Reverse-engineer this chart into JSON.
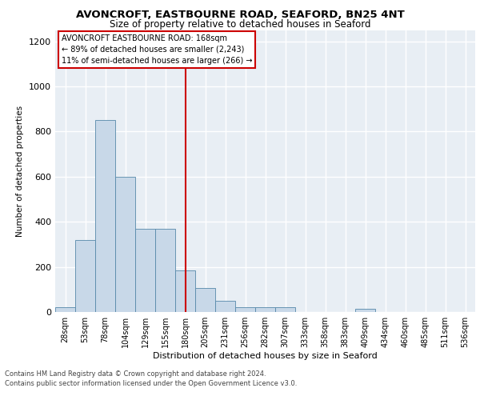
{
  "title1": "AVONCROFT, EASTBOURNE ROAD, SEAFORD, BN25 4NT",
  "title2": "Size of property relative to detached houses in Seaford",
  "xlabel": "Distribution of detached houses by size in Seaford",
  "ylabel": "Number of detached properties",
  "categories": [
    "28sqm",
    "53sqm",
    "78sqm",
    "104sqm",
    "129sqm",
    "155sqm",
    "180sqm",
    "205sqm",
    "231sqm",
    "256sqm",
    "282sqm",
    "307sqm",
    "333sqm",
    "358sqm",
    "383sqm",
    "409sqm",
    "434sqm",
    "460sqm",
    "485sqm",
    "511sqm",
    "536sqm"
  ],
  "values": [
    20,
    320,
    850,
    600,
    370,
    370,
    185,
    105,
    50,
    20,
    20,
    20,
    0,
    0,
    0,
    15,
    0,
    0,
    0,
    0,
    0
  ],
  "bar_color": "#c8d8e8",
  "bar_edge_color": "#5588aa",
  "reference_line_x": 6.0,
  "reference_line_color": "#cc0000",
  "annotation_text": "AVONCROFT EASTBOURNE ROAD: 168sqm\n← 89% of detached houses are smaller (2,243)\n11% of semi-detached houses are larger (266) →",
  "annotation_box_color": "#ffffff",
  "annotation_box_edge_color": "#cc0000",
  "ylim": [
    0,
    1250
  ],
  "yticks": [
    0,
    200,
    400,
    600,
    800,
    1000,
    1200
  ],
  "background_color": "#e8eef4",
  "grid_color": "#ffffff",
  "fig_background": "#ffffff",
  "footer_line1": "Contains HM Land Registry data © Crown copyright and database right 2024.",
  "footer_line2": "Contains public sector information licensed under the Open Government Licence v3.0."
}
